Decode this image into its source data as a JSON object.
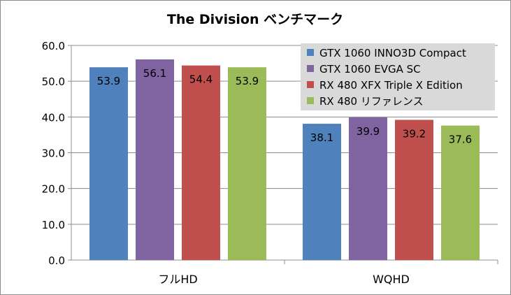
{
  "chart_data": {
    "type": "bar",
    "title": "The Division ベンチマーク",
    "categories": [
      "フルHD",
      "WQHD"
    ],
    "series": [
      {
        "name": "GTX 1060 INNO3D Compact",
        "color": "#4f81bd",
        "values": [
          53.9,
          38.1
        ]
      },
      {
        "name": "GTX 1060 EVGA SC",
        "color": "#8064a2",
        "values": [
          56.1,
          39.9
        ]
      },
      {
        "name": "RX 480 XFX Triple X Edition",
        "color": "#c0504d",
        "values": [
          54.4,
          39.2
        ]
      },
      {
        "name": "RX 480 リファレンス",
        "color": "#9bbb59",
        "values": [
          53.9,
          37.6
        ]
      }
    ],
    "ylim": [
      0,
      60
    ],
    "yticks": [
      "0.0",
      "10.0",
      "20.0",
      "30.0",
      "40.0",
      "50.0",
      "60.0"
    ],
    "grid": true,
    "legend": "top-right",
    "data_labels": true
  }
}
